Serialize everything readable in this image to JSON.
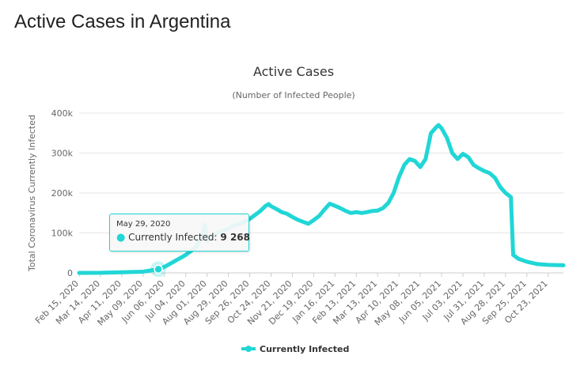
{
  "page": {
    "heading": "Active Cases in Argentina"
  },
  "chart_data": {
    "type": "line",
    "title": "Active Cases",
    "subtitle": "(Number of Infected People)",
    "ylabel": "Total Coronavirus Currently Infected",
    "xlabel": "",
    "ylim": [
      0,
      400000
    ],
    "y_ticks": [
      0,
      100000,
      200000,
      300000,
      400000
    ],
    "y_tick_labels": [
      "0",
      "100k",
      "200k",
      "300k",
      "400k"
    ],
    "x_range": [
      "2020-02-15",
      "2021-11-12"
    ],
    "x_tick_dates": [
      "2020-02-15",
      "2020-03-14",
      "2020-04-11",
      "2020-05-09",
      "2020-06-06",
      "2020-07-04",
      "2020-08-01",
      "2020-08-29",
      "2020-09-26",
      "2020-10-24",
      "2020-11-21",
      "2020-12-19",
      "2021-01-16",
      "2021-02-13",
      "2021-03-13",
      "2021-04-10",
      "2021-05-08",
      "2021-06-05",
      "2021-07-03",
      "2021-07-31",
      "2021-08-28",
      "2021-09-25",
      "2021-10-23"
    ],
    "x_tick_labels": [
      "Feb 15, 2020",
      "Mar 14, 2020",
      "Apr 11, 2020",
      "May 09, 2020",
      "Jun 06, 2020",
      "Jul 04, 2020",
      "Aug 01, 2020",
      "Aug 29, 2020",
      "Sep 26, 2020",
      "Oct 24, 2020",
      "Nov 21, 2020",
      "Dec 19, 2020",
      "Jan 16, 2021",
      "Feb 13, 2021",
      "Mar 13, 2021",
      "Apr 10, 2021",
      "May 08, 2021",
      "Jun 05, 2021",
      "Jul 03, 2021",
      "Jul 31, 2021",
      "Aug 28, 2021",
      "Sep 25, 2021",
      "Oct 23, 2021"
    ],
    "grid": true,
    "series": [
      {
        "name": "Currently Infected",
        "color": "#21d6d6",
        "points": [
          [
            "2020-02-15",
            0
          ],
          [
            "2020-03-14",
            200
          ],
          [
            "2020-04-11",
            1500
          ],
          [
            "2020-05-09",
            3000
          ],
          [
            "2020-05-29",
            9268
          ],
          [
            "2020-06-06",
            15000
          ],
          [
            "2020-06-20",
            30000
          ],
          [
            "2020-07-04",
            45000
          ],
          [
            "2020-07-18",
            65000
          ],
          [
            "2020-07-25",
            90000
          ],
          [
            "2020-07-29",
            120000
          ],
          [
            "2020-08-01",
            80000
          ],
          [
            "2020-08-08",
            90000
          ],
          [
            "2020-08-15",
            100000
          ],
          [
            "2020-08-22",
            105000
          ],
          [
            "2020-08-29",
            110000
          ],
          [
            "2020-09-05",
            118000
          ],
          [
            "2020-09-12",
            122000
          ],
          [
            "2020-09-19",
            128000
          ],
          [
            "2020-09-26",
            135000
          ],
          [
            "2020-10-03",
            145000
          ],
          [
            "2020-10-10",
            155000
          ],
          [
            "2020-10-17",
            168000
          ],
          [
            "2020-10-21",
            172000
          ],
          [
            "2020-10-24",
            167000
          ],
          [
            "2020-10-31",
            160000
          ],
          [
            "2020-11-07",
            152000
          ],
          [
            "2020-11-14",
            148000
          ],
          [
            "2020-11-21",
            140000
          ],
          [
            "2020-11-28",
            133000
          ],
          [
            "2020-12-05",
            128000
          ],
          [
            "2020-12-12",
            123000
          ],
          [
            "2020-12-19",
            132000
          ],
          [
            "2020-12-26",
            142000
          ],
          [
            "2021-01-02",
            158000
          ],
          [
            "2021-01-09",
            173000
          ],
          [
            "2021-01-16",
            168000
          ],
          [
            "2021-01-23",
            162000
          ],
          [
            "2021-01-30",
            155000
          ],
          [
            "2021-02-06",
            150000
          ],
          [
            "2021-02-13",
            152000
          ],
          [
            "2021-02-20",
            150000
          ],
          [
            "2021-02-27",
            152000
          ],
          [
            "2021-03-06",
            155000
          ],
          [
            "2021-03-13",
            156000
          ],
          [
            "2021-03-20",
            162000
          ],
          [
            "2021-03-27",
            175000
          ],
          [
            "2021-04-03",
            200000
          ],
          [
            "2021-04-10",
            240000
          ],
          [
            "2021-04-17",
            270000
          ],
          [
            "2021-04-24",
            285000
          ],
          [
            "2021-05-01",
            280000
          ],
          [
            "2021-05-08",
            265000
          ],
          [
            "2021-05-15",
            285000
          ],
          [
            "2021-05-22",
            350000
          ],
          [
            "2021-05-29",
            365000
          ],
          [
            "2021-06-01",
            370000
          ],
          [
            "2021-06-05",
            362000
          ],
          [
            "2021-06-12",
            338000
          ],
          [
            "2021-06-19",
            300000
          ],
          [
            "2021-06-26",
            285000
          ],
          [
            "2021-07-03",
            298000
          ],
          [
            "2021-07-10",
            290000
          ],
          [
            "2021-07-17",
            270000
          ],
          [
            "2021-07-24",
            262000
          ],
          [
            "2021-07-31",
            255000
          ],
          [
            "2021-08-07",
            250000
          ],
          [
            "2021-08-14",
            238000
          ],
          [
            "2021-08-21",
            215000
          ],
          [
            "2021-08-28",
            200000
          ],
          [
            "2021-09-04",
            190000
          ],
          [
            "2021-09-07",
            45000
          ],
          [
            "2021-09-14",
            35000
          ],
          [
            "2021-09-25",
            28000
          ],
          [
            "2021-10-09",
            22000
          ],
          [
            "2021-10-23",
            20000
          ],
          [
            "2021-11-12",
            19000
          ]
        ]
      }
    ],
    "tooltip": {
      "date": "May 29, 2020",
      "label": "Currently Infected:",
      "value": "9 268",
      "at": "2020-05-29"
    },
    "legend": {
      "position": "bottom",
      "label": "Currently Infected"
    }
  }
}
